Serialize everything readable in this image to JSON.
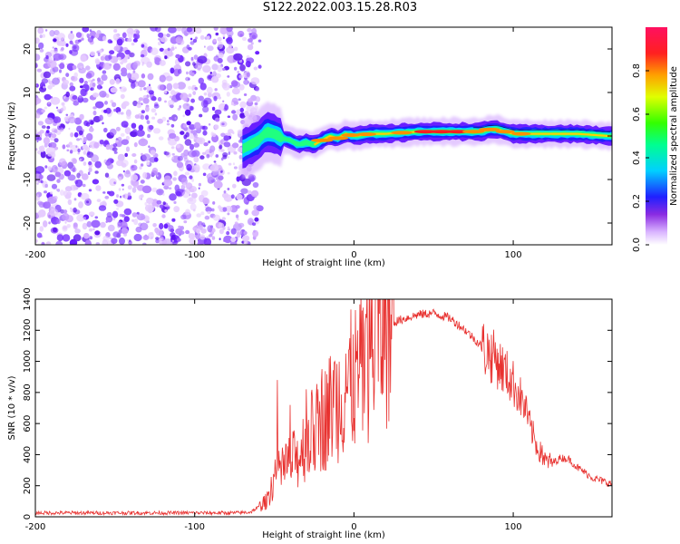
{
  "title": "S122.2022.003.15.28.R03",
  "chart_data": [
    {
      "type": "heatmap",
      "xlabel": "Height of straight line (km)",
      "ylabel": "Frequency (Hz)",
      "xlim": [
        -200,
        162
      ],
      "ylim": [
        -25,
        25
      ],
      "x_ticks": [
        -200,
        -100,
        0,
        100
      ],
      "y_ticks": [
        -20,
        -10,
        0,
        10,
        20
      ],
      "colorbar": {
        "label": "Normalized spectral amplitude",
        "range": [
          0,
          1
        ],
        "ticks": [
          0.0,
          0.2,
          0.4,
          0.6,
          0.8
        ]
      },
      "noise_region_x": [
        -200,
        -65
      ],
      "ridge": [
        [
          -70,
          -3
        ],
        [
          -65,
          -2
        ],
        [
          -60,
          -1
        ],
        [
          -55,
          1
        ],
        [
          -50,
          0.5
        ],
        [
          -45,
          -0.5
        ],
        [
          -40,
          -1
        ],
        [
          -35,
          -2
        ],
        [
          -30,
          -1.5
        ],
        [
          -25,
          -2
        ],
        [
          -20,
          -1
        ],
        [
          -15,
          0
        ],
        [
          -10,
          -0.5
        ],
        [
          -5,
          0.5
        ],
        [
          0,
          0
        ],
        [
          10,
          0.5
        ],
        [
          20,
          0.5
        ],
        [
          40,
          1
        ],
        [
          60,
          1
        ],
        [
          80,
          1
        ],
        [
          85,
          1.5
        ],
        [
          90,
          1.5
        ],
        [
          100,
          0.5
        ],
        [
          110,
          0.5
        ],
        [
          120,
          0.5
        ],
        [
          140,
          0.5
        ],
        [
          160,
          0
        ]
      ]
    },
    {
      "type": "line",
      "xlabel": "Height of straight line (km)",
      "ylabel": "SNR (10 * v/v)",
      "xlim": [
        -200,
        162
      ],
      "ylim": [
        0,
        1400
      ],
      "x_ticks": [
        -200,
        -100,
        0,
        100
      ],
      "y_ticks": [
        0,
        200,
        400,
        600,
        800,
        1000,
        1200,
        1400
      ],
      "color": "#e8312f",
      "envelope": [
        [
          -200,
          25
        ],
        [
          -150,
          25
        ],
        [
          -100,
          25
        ],
        [
          -75,
          25
        ],
        [
          -65,
          30
        ],
        [
          -60,
          60
        ],
        [
          -55,
          100
        ],
        [
          -50,
          250
        ],
        [
          -45,
          300
        ],
        [
          -40,
          350
        ],
        [
          -35,
          380
        ],
        [
          -30,
          500
        ],
        [
          -25,
          550
        ],
        [
          -20,
          600
        ],
        [
          -15,
          700
        ],
        [
          -10,
          760
        ],
        [
          -5,
          830
        ],
        [
          0,
          880
        ],
        [
          5,
          940
        ],
        [
          10,
          1060
        ],
        [
          15,
          1180
        ],
        [
          20,
          1230
        ],
        [
          30,
          1270
        ],
        [
          40,
          1300
        ],
        [
          50,
          1310
        ],
        [
          60,
          1280
        ],
        [
          70,
          1200
        ],
        [
          80,
          1100
        ],
        [
          90,
          1000
        ],
        [
          100,
          860
        ],
        [
          105,
          760
        ],
        [
          110,
          600
        ],
        [
          115,
          450
        ],
        [
          120,
          360
        ],
        [
          125,
          350
        ],
        [
          130,
          380
        ],
        [
          135,
          370
        ],
        [
          140,
          320
        ],
        [
          150,
          250
        ],
        [
          162,
          210
        ]
      ],
      "spikes": [
        [
          -48,
          880
        ],
        [
          -40,
          720
        ],
        [
          -30,
          820
        ],
        [
          -20,
          950
        ],
        [
          -12,
          1000
        ],
        [
          -5,
          1050
        ],
        [
          8,
          1280
        ],
        [
          14,
          1420
        ],
        [
          20,
          1330
        ],
        [
          88,
          1050
        ],
        [
          108,
          780
        ],
        [
          118,
          460
        ]
      ]
    }
  ]
}
